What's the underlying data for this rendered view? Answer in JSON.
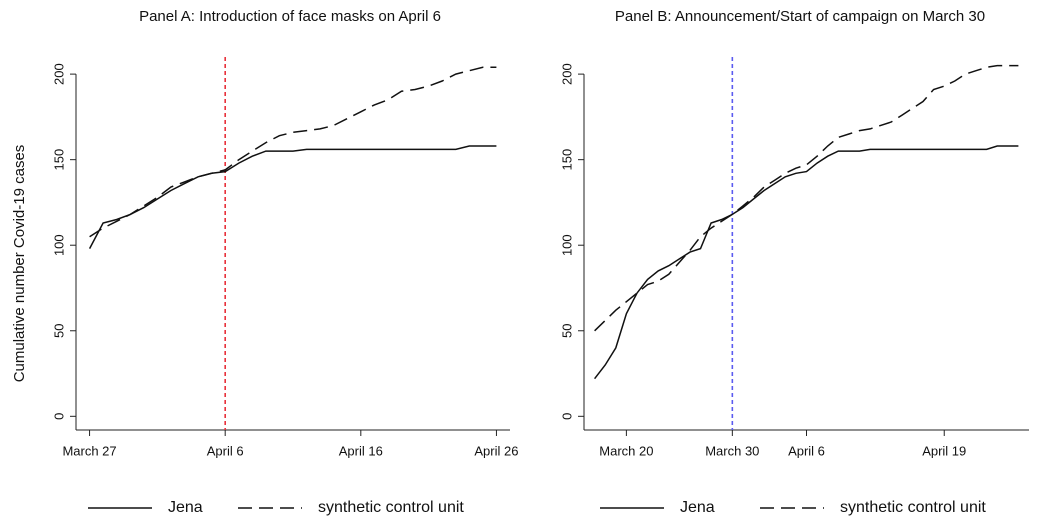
{
  "chart_data": [
    {
      "type": "line",
      "title": "Panel A: Introduction of face masks on April 6",
      "y_label": "Cumulative number Covid-19 cases",
      "x": [
        "March 27",
        "March 28",
        "March 29",
        "March 30",
        "March 31",
        "April 1",
        "April 2",
        "April 3",
        "April 4",
        "April 5",
        "April 6",
        "April 7",
        "April 8",
        "April 9",
        "April 10",
        "April 11",
        "April 12",
        "April 13",
        "April 14",
        "April 15",
        "April 16",
        "April 17",
        "April 18",
        "April 19",
        "April 20",
        "April 21",
        "April 22",
        "April 23",
        "April 24",
        "April 25",
        "April 26"
      ],
      "series": [
        {
          "name": "Jena",
          "color": "#111111",
          "dash": false,
          "values": [
            98,
            113,
            115,
            118,
            122,
            127,
            132,
            136,
            140,
            142,
            143,
            148,
            152,
            155,
            155,
            155,
            156,
            156,
            156,
            156,
            156,
            156,
            156,
            156,
            156,
            156,
            156,
            156,
            158,
            158,
            158
          ]
        },
        {
          "name": "synthetic control unit",
          "color": "#111111",
          "dash": true,
          "values": [
            105,
            110,
            114,
            118,
            123,
            128,
            134,
            137,
            140,
            142,
            144,
            150,
            155,
            160,
            164,
            166,
            167,
            168,
            170,
            174,
            178,
            182,
            185,
            190,
            191,
            193,
            196,
            200,
            202,
            204,
            204
          ]
        }
      ],
      "xlim": [
        "March 26",
        "April 27"
      ],
      "xticks": [
        "March 27",
        "April 6",
        "April 16",
        "April 26"
      ],
      "ylim": [
        -8,
        210
      ],
      "yticks": [
        0,
        50,
        100,
        150,
        200
      ],
      "vline": {
        "x": "April 6",
        "color": "#e8303a"
      }
    },
    {
      "type": "line",
      "title": "Panel B: Announcement/Start of campaign on March 30",
      "x": [
        "March 17",
        "March 18",
        "March 19",
        "March 20",
        "March 21",
        "March 22",
        "March 23",
        "March 24",
        "March 25",
        "March 26",
        "March 27",
        "March 28",
        "March 29",
        "March 30",
        "March 31",
        "April 1",
        "April 2",
        "April 3",
        "April 4",
        "April 5",
        "April 6",
        "April 7",
        "April 8",
        "April 9",
        "April 10",
        "April 11",
        "April 12",
        "April 13",
        "April 14",
        "April 15",
        "April 16",
        "April 17",
        "April 18",
        "April 19",
        "April 20",
        "April 21",
        "April 22",
        "April 23",
        "April 24",
        "April 25",
        "April 26"
      ],
      "series": [
        {
          "name": "Jena",
          "color": "#111111",
          "dash": false,
          "values": [
            22,
            30,
            40,
            60,
            72,
            80,
            85,
            88,
            92,
            96,
            98,
            113,
            115,
            118,
            122,
            127,
            132,
            136,
            140,
            142,
            143,
            148,
            152,
            155,
            155,
            155,
            156,
            156,
            156,
            156,
            156,
            156,
            156,
            156,
            156,
            156,
            156,
            156,
            158,
            158,
            158
          ]
        },
        {
          "name": "synthetic control unit",
          "color": "#111111",
          "dash": true,
          "values": [
            50,
            56,
            62,
            67,
            72,
            77,
            79,
            83,
            90,
            97,
            105,
            110,
            114,
            118,
            123,
            128,
            134,
            138,
            142,
            145,
            147,
            152,
            158,
            163,
            165,
            167,
            168,
            170,
            172,
            176,
            180,
            184,
            191,
            193,
            196,
            200,
            202,
            204,
            205,
            205,
            205
          ]
        }
      ],
      "xlim": [
        "March 16",
        "April 27"
      ],
      "xticks": [
        "March 20",
        "March 30",
        "April 6",
        "April 19"
      ],
      "ylim": [
        -8,
        210
      ],
      "yticks": [
        0,
        50,
        100,
        150,
        200
      ],
      "vline": {
        "x": "March 30",
        "color": "#5b5bf0"
      }
    }
  ]
}
